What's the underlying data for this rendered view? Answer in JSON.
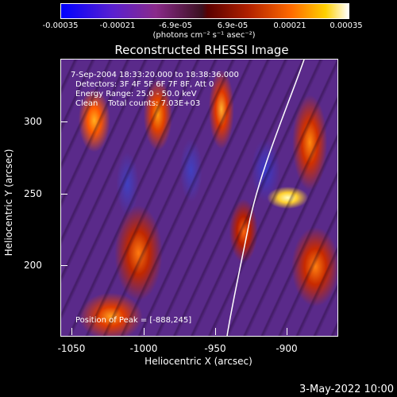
{
  "colorbar": {
    "ticks": [
      "-0.00035",
      "-0.00021",
      "-6.9e-05",
      "6.9e-05",
      "0.00021",
      "0.00035"
    ],
    "unit_label": "(photons cm⁻² s⁻¹ asec⁻²)"
  },
  "title": "Reconstructed RHESSI Image",
  "info": {
    "time_range": "7-Sep-2004 18:33:20.000 to 18:38:36.000",
    "detectors": "Detectors: 3F 4F 5F 6F 7F 8F, Att 0",
    "energy": "Energy Range: 25.0 - 50.0 keV",
    "clean": "Clean    Total counts: 7.03E+03",
    "peak": "Position of Peak = [-888,245]"
  },
  "x_axis": {
    "label": "Heliocentric X (arcsec)",
    "ticks": [
      "-1050",
      "-1000",
      "-950",
      "-900"
    ]
  },
  "y_axis": {
    "label": "Heliocentric Y (arcsec)",
    "ticks": [
      "300",
      "250",
      "200"
    ]
  },
  "date_stamp": "3-May-2022 10:00"
}
